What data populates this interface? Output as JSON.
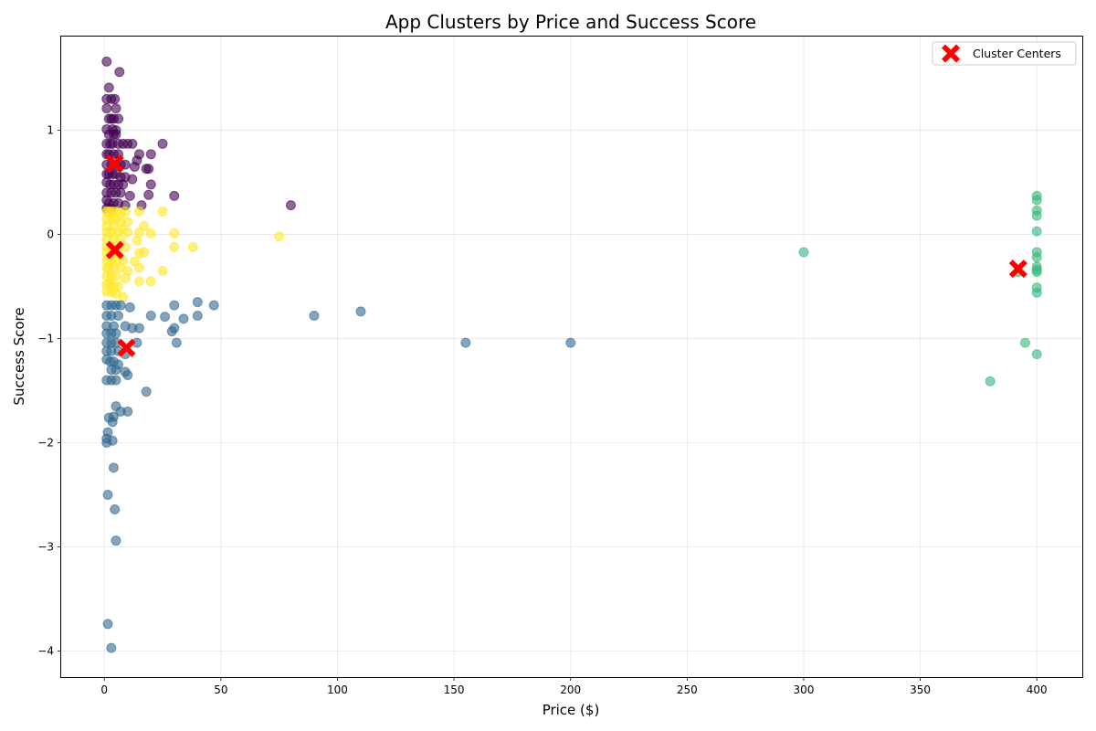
{
  "chart_data": {
    "type": "scatter",
    "title": "App Clusters by Price and Success Score",
    "xlabel": "Price ($)",
    "ylabel": "Success Score",
    "xlim": [
      -18.5,
      419.5
    ],
    "ylim": [
      -4.25,
      1.9
    ],
    "xticks": [
      0,
      50,
      100,
      150,
      200,
      250,
      300,
      350,
      400
    ],
    "yticks": [
      1,
      0,
      -1,
      -2,
      -3,
      -4
    ],
    "ytick_labels": [
      "1",
      "0",
      "−1",
      "−2",
      "−3",
      "−4"
    ],
    "grid": true,
    "legend": {
      "position": "top-right",
      "entries": [
        "Cluster Centers"
      ]
    },
    "colors": {
      "cluster_0": "#440154",
      "cluster_1": "#31688e",
      "cluster_2": "#35b779",
      "cluster_3": "#fde725",
      "centers": "#ff0000"
    },
    "series": [
      {
        "cluster": 0,
        "color": "#440154",
        "points": [
          [
            1,
            1.66
          ],
          [
            6.5,
            1.56
          ],
          [
            2,
            1.41
          ],
          [
            1,
            1.3
          ],
          [
            3,
            1.3
          ],
          [
            4.5,
            1.3
          ],
          [
            1,
            1.21
          ],
          [
            5,
            1.21
          ],
          [
            2,
            1.11
          ],
          [
            3,
            1.11
          ],
          [
            4,
            1.11
          ],
          [
            6,
            1.11
          ],
          [
            1,
            1.01
          ],
          [
            3.5,
            1.01
          ],
          [
            5,
            1.0
          ],
          [
            2,
            0.96
          ],
          [
            4,
            0.96
          ],
          [
            5,
            0.96
          ],
          [
            1,
            0.87
          ],
          [
            2.5,
            0.87
          ],
          [
            3.5,
            0.87
          ],
          [
            6,
            0.87
          ],
          [
            8,
            0.87
          ],
          [
            10,
            0.87
          ],
          [
            12,
            0.87
          ],
          [
            25,
            0.87
          ],
          [
            1,
            0.77
          ],
          [
            2,
            0.77
          ],
          [
            4,
            0.77
          ],
          [
            6,
            0.77
          ],
          [
            15,
            0.77
          ],
          [
            20,
            0.77
          ],
          [
            1,
            0.67
          ],
          [
            3,
            0.67
          ],
          [
            5,
            0.67
          ],
          [
            7,
            0.67
          ],
          [
            9,
            0.67
          ],
          [
            14,
            0.71
          ],
          [
            13,
            0.65
          ],
          [
            18,
            0.63
          ],
          [
            19,
            0.63
          ],
          [
            1,
            0.58
          ],
          [
            2,
            0.58
          ],
          [
            3.5,
            0.58
          ],
          [
            5,
            0.58
          ],
          [
            7,
            0.55
          ],
          [
            9,
            0.55
          ],
          [
            12,
            0.53
          ],
          [
            1,
            0.5
          ],
          [
            2.5,
            0.48
          ],
          [
            4,
            0.48
          ],
          [
            6,
            0.48
          ],
          [
            8,
            0.48
          ],
          [
            20,
            0.48
          ],
          [
            1,
            0.4
          ],
          [
            3,
            0.4
          ],
          [
            5,
            0.4
          ],
          [
            7,
            0.4
          ],
          [
            11,
            0.37
          ],
          [
            19,
            0.38
          ],
          [
            30,
            0.37
          ],
          [
            1,
            0.33
          ],
          [
            2,
            0.3
          ],
          [
            4,
            0.3
          ],
          [
            6,
            0.3
          ],
          [
            9,
            0.28
          ],
          [
            16,
            0.28
          ],
          [
            80,
            0.28
          ],
          [
            1,
            0.25
          ],
          [
            3,
            0.25
          ]
        ]
      },
      {
        "cluster": 3,
        "color": "#fde725",
        "points": [
          [
            1,
            0.22
          ],
          [
            2,
            0.22
          ],
          [
            3,
            0.22
          ],
          [
            5,
            0.22
          ],
          [
            7,
            0.2
          ],
          [
            9,
            0.22
          ],
          [
            15,
            0.22
          ],
          [
            25,
            0.22
          ],
          [
            1,
            0.15
          ],
          [
            3,
            0.15
          ],
          [
            5,
            0.15
          ],
          [
            7,
            0.12
          ],
          [
            10,
            0.12
          ],
          [
            1,
            0.08
          ],
          [
            4,
            0.08
          ],
          [
            8,
            0.05
          ],
          [
            17,
            0.08
          ],
          [
            1,
            0.02
          ],
          [
            3,
            0.02
          ],
          [
            6,
            0.02
          ],
          [
            10,
            0.02
          ],
          [
            15,
            0.02
          ],
          [
            20,
            0.01
          ],
          [
            30,
            0.01
          ],
          [
            75,
            -0.02
          ],
          [
            1,
            -0.05
          ],
          [
            4,
            -0.05
          ],
          [
            7,
            -0.05
          ],
          [
            14,
            -0.06
          ],
          [
            1,
            -0.12
          ],
          [
            3,
            -0.12
          ],
          [
            5,
            -0.12
          ],
          [
            9,
            -0.12
          ],
          [
            30,
            -0.12
          ],
          [
            38,
            -0.12
          ],
          [
            1,
            -0.18
          ],
          [
            2.5,
            -0.18
          ],
          [
            6,
            -0.18
          ],
          [
            15,
            -0.18
          ],
          [
            17,
            -0.17
          ],
          [
            1,
            -0.25
          ],
          [
            3,
            -0.25
          ],
          [
            5,
            -0.25
          ],
          [
            8,
            -0.25
          ],
          [
            13,
            -0.26
          ],
          [
            1,
            -0.32
          ],
          [
            2,
            -0.32
          ],
          [
            4,
            -0.32
          ],
          [
            7,
            -0.32
          ],
          [
            10,
            -0.35
          ],
          [
            15,
            -0.32
          ],
          [
            25,
            -0.35
          ],
          [
            1,
            -0.4
          ],
          [
            3,
            -0.4
          ],
          [
            5,
            -0.4
          ],
          [
            9,
            -0.42
          ],
          [
            15,
            -0.45
          ],
          [
            20,
            -0.45
          ],
          [
            1,
            -0.48
          ],
          [
            2.5,
            -0.48
          ],
          [
            4,
            -0.5
          ],
          [
            6,
            -0.5
          ],
          [
            1,
            -0.55
          ],
          [
            3,
            -0.55
          ],
          [
            5,
            -0.57
          ],
          [
            8,
            -0.6
          ]
        ]
      },
      {
        "cluster": 1,
        "color": "#31688e",
        "points": [
          [
            1,
            -0.68
          ],
          [
            3,
            -0.68
          ],
          [
            5,
            -0.68
          ],
          [
            7,
            -0.68
          ],
          [
            11,
            -0.7
          ],
          [
            40,
            -0.65
          ],
          [
            47,
            -0.68
          ],
          [
            30,
            -0.68
          ],
          [
            1,
            -0.78
          ],
          [
            3,
            -0.78
          ],
          [
            6,
            -0.78
          ],
          [
            20,
            -0.78
          ],
          [
            26,
            -0.79
          ],
          [
            34,
            -0.81
          ],
          [
            40,
            -0.78
          ],
          [
            90,
            -0.78
          ],
          [
            110,
            -0.74
          ],
          [
            1,
            -0.88
          ],
          [
            4,
            -0.88
          ],
          [
            9,
            -0.88
          ],
          [
            12,
            -0.9
          ],
          [
            15,
            -0.9
          ],
          [
            30,
            -0.9
          ],
          [
            29,
            -0.93
          ],
          [
            1,
            -0.95
          ],
          [
            3,
            -0.95
          ],
          [
            5,
            -0.95
          ],
          [
            1,
            -1.04
          ],
          [
            3,
            -1.04
          ],
          [
            5,
            -1.04
          ],
          [
            14,
            -1.04
          ],
          [
            31,
            -1.04
          ],
          [
            155,
            -1.04
          ],
          [
            200,
            -1.04
          ],
          [
            1,
            -1.12
          ],
          [
            3,
            -1.12
          ],
          [
            6,
            -1.12
          ],
          [
            9,
            -1.15
          ],
          [
            1,
            -1.2
          ],
          [
            2.5,
            -1.22
          ],
          [
            4,
            -1.22
          ],
          [
            6,
            -1.25
          ],
          [
            3,
            -1.3
          ],
          [
            5,
            -1.3
          ],
          [
            9,
            -1.32
          ],
          [
            10,
            -1.35
          ],
          [
            1,
            -1.4
          ],
          [
            3,
            -1.4
          ],
          [
            5,
            -1.4
          ],
          [
            18,
            -1.51
          ],
          [
            5,
            -1.65
          ],
          [
            2,
            -1.76
          ],
          [
            4,
            -1.75
          ],
          [
            7,
            -1.7
          ],
          [
            10,
            -1.7
          ],
          [
            3.5,
            -1.8
          ],
          [
            1.5,
            -1.9
          ],
          [
            1,
            -1.96
          ],
          [
            3.5,
            -1.98
          ],
          [
            1,
            -2.0
          ],
          [
            4,
            -2.24
          ],
          [
            1.5,
            -2.5
          ],
          [
            4.5,
            -2.64
          ],
          [
            5,
            -2.94
          ],
          [
            1.5,
            -3.74
          ],
          [
            3,
            -3.97
          ]
        ]
      },
      {
        "cluster": 2,
        "color": "#35b779",
        "points": [
          [
            300,
            -0.17
          ],
          [
            400,
            0.37
          ],
          [
            400,
            0.33
          ],
          [
            400,
            0.23
          ],
          [
            400,
            0.18
          ],
          [
            400,
            0.03
          ],
          [
            400,
            -0.17
          ],
          [
            400,
            -0.22
          ],
          [
            400,
            -0.31
          ],
          [
            400,
            -0.34
          ],
          [
            400,
            -0.36
          ],
          [
            392,
            -0.36
          ],
          [
            400,
            -0.51
          ],
          [
            400,
            -0.56
          ],
          [
            395,
            -1.04
          ],
          [
            400,
            -1.15
          ],
          [
            380,
            -1.41
          ]
        ]
      }
    ],
    "cluster_centers": [
      [
        4.5,
        0.68
      ],
      [
        4.5,
        -0.15
      ],
      [
        9.5,
        -1.09
      ],
      [
        392,
        -0.33
      ]
    ]
  }
}
